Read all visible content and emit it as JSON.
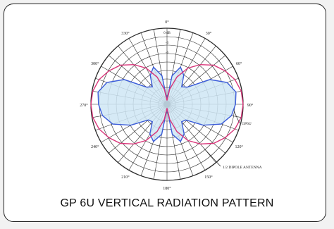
{
  "caption": "GP 6U VERTICAL RADIATION PATTERN",
  "colors": {
    "background": "#f2f2f2",
    "card": "#ffffff",
    "frame": "#222222",
    "grid": "#2b2b2b",
    "gp6u_line": "#3a5bd9",
    "gp6u_fill": "#cfe6f5",
    "dipole_line": "#d9367a"
  },
  "chart_data": {
    "type": "polar",
    "title": "GP 6U VERTICAL RADIATION PATTERN",
    "angle_ticks": [
      "0°",
      "30°",
      "60°",
      "90°",
      "120°",
      "150°",
      "180°",
      "210°",
      "240°",
      "270°",
      "300°",
      "330°"
    ],
    "radial_labels": [
      "0 dB",
      "-3",
      "-6"
    ],
    "annotations": [
      "GP6U",
      "1/2 DIPOLE ANTENNA"
    ],
    "grid": true,
    "series": [
      {
        "name": "GP6U",
        "angles_deg": [
          0,
          10,
          20,
          30,
          40,
          50,
          60,
          70,
          80,
          90,
          100,
          110,
          120,
          130,
          140,
          150,
          160,
          170,
          180,
          190,
          200,
          210,
          220,
          230,
          240,
          250,
          260,
          270,
          280,
          290,
          300,
          310,
          320,
          330,
          340,
          350
        ],
        "values": [
          0.06,
          0.38,
          0.52,
          0.44,
          0.3,
          0.35,
          0.65,
          0.84,
          0.92,
          0.9,
          0.86,
          0.76,
          0.55,
          0.32,
          0.3,
          0.45,
          0.52,
          0.4,
          0.06,
          0.4,
          0.52,
          0.45,
          0.3,
          0.32,
          0.55,
          0.76,
          0.86,
          0.9,
          0.92,
          0.84,
          0.65,
          0.35,
          0.3,
          0.44,
          0.52,
          0.38
        ]
      },
      {
        "name": "1/2 DIPOLE ANTENNA",
        "angles_deg": [
          0,
          10,
          20,
          30,
          40,
          50,
          60,
          70,
          80,
          90,
          100,
          110,
          120,
          130,
          140,
          150,
          160,
          170,
          180,
          190,
          200,
          210,
          220,
          230,
          240,
          250,
          260,
          270,
          280,
          290,
          300,
          310,
          320,
          330,
          340,
          350
        ],
        "values": [
          0.05,
          0.2,
          0.38,
          0.55,
          0.68,
          0.8,
          0.88,
          0.95,
          0.99,
          1.0,
          0.99,
          0.95,
          0.88,
          0.8,
          0.68,
          0.55,
          0.38,
          0.2,
          0.05,
          0.2,
          0.38,
          0.55,
          0.68,
          0.8,
          0.88,
          0.95,
          0.99,
          1.0,
          0.99,
          0.95,
          0.88,
          0.8,
          0.68,
          0.55,
          0.38,
          0.2
        ]
      }
    ]
  }
}
